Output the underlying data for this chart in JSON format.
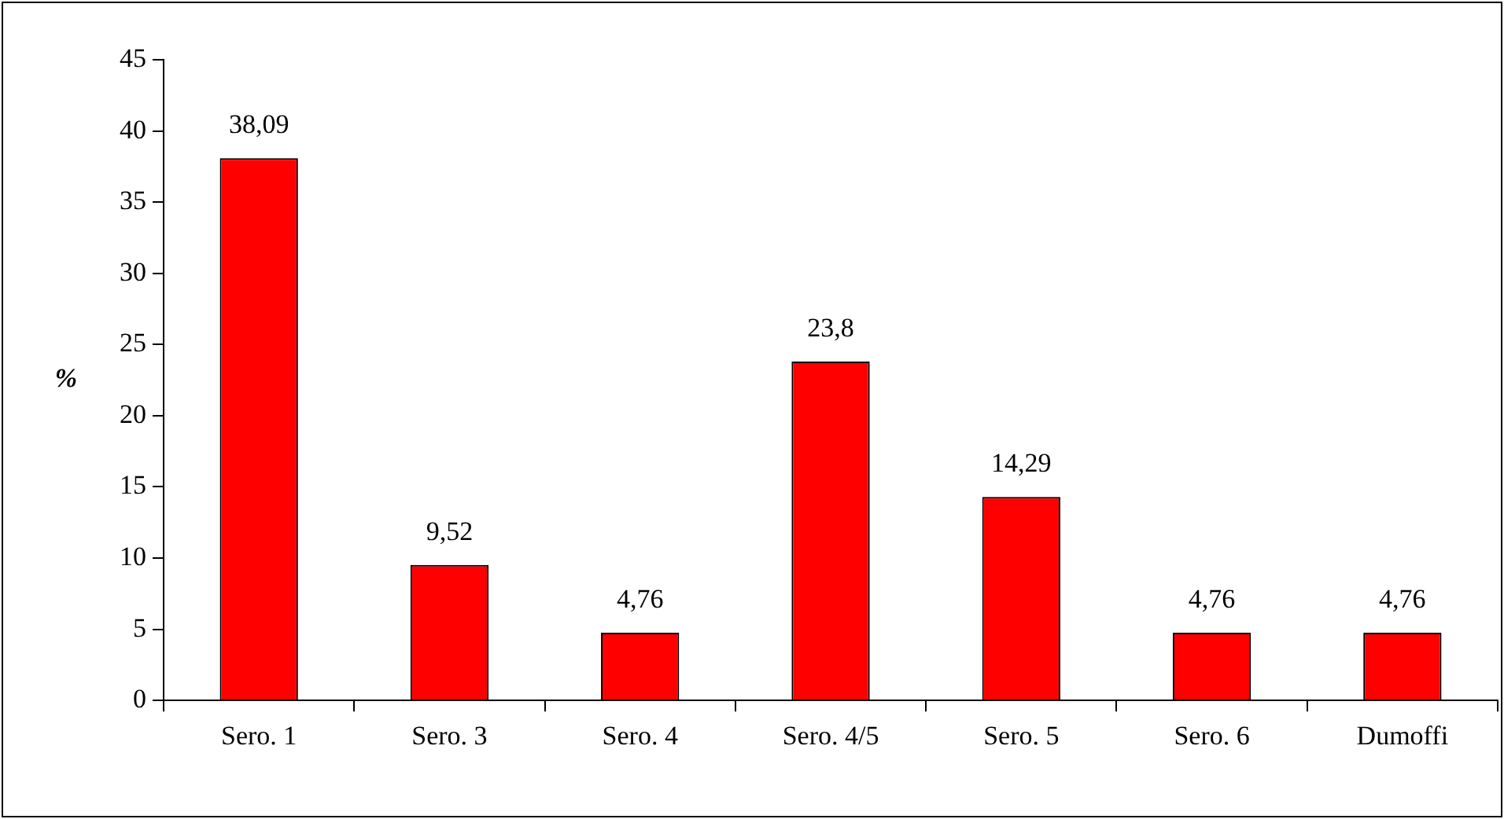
{
  "chart_data": {
    "type": "bar",
    "categories": [
      "Sero. 1",
      "Sero. 3",
      "Sero. 4",
      "Sero. 4/5",
      "Sero. 5",
      "Sero. 6",
      "Dumoffi"
    ],
    "values": [
      38.09,
      9.52,
      4.76,
      23.8,
      14.29,
      4.76,
      4.76
    ],
    "value_labels": [
      "38,09",
      "9,52",
      "4,76",
      "23,8",
      "14,29",
      "4,76",
      "4,76"
    ],
    "color": "#ff0000",
    "ylabel": "%",
    "ylim": [
      0,
      45
    ],
    "yticks": [
      0,
      5,
      10,
      15,
      20,
      25,
      30,
      35,
      40,
      45
    ]
  }
}
